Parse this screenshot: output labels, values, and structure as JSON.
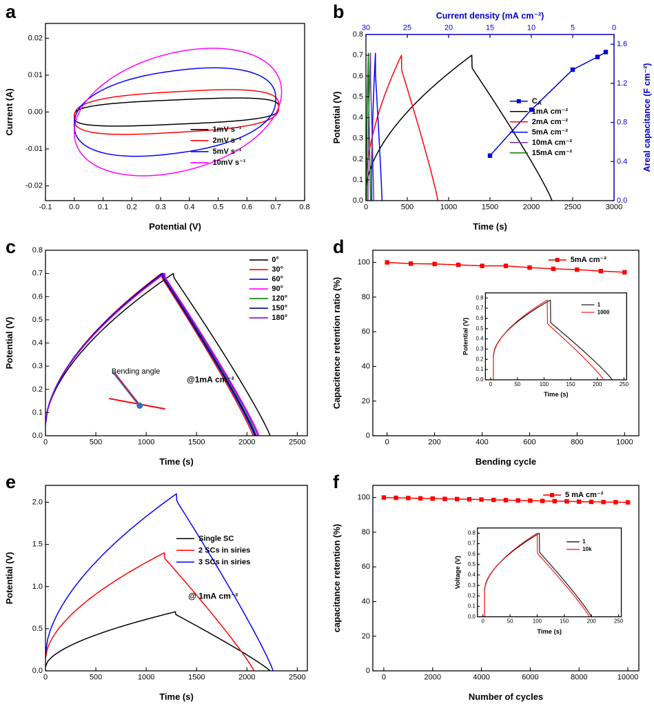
{
  "figure": {
    "background": "#ffffff",
    "accent_blue": "#0000cd"
  },
  "chart_data": [
    {
      "panel_label": "a",
      "type": "line",
      "xlabel": "Potential (V)",
      "ylabel": "Current (A)",
      "xlim": [
        -0.1,
        0.8
      ],
      "xticks": [
        -0.1,
        0.0,
        0.1,
        0.2,
        0.3,
        0.4,
        0.5,
        0.6,
        0.7,
        0.8
      ],
      "xdec": 1,
      "ylim": [
        -0.024,
        0.024
      ],
      "yticks": [
        -0.02,
        -0.01,
        0.0,
        0.01,
        0.02
      ],
      "ydec": 2,
      "margins": {
        "l": 66,
        "r": 32,
        "t": 34,
        "b": 50
      },
      "legend": {
        "x": 0.56,
        "y": 0.56,
        "dy": 16
      },
      "series": [
        {
          "type": "cv",
          "label": "1mV s⁻¹",
          "color": "#000000",
          "cx": 0.355,
          "rx": 0.355,
          "ry": 0.0033,
          "tilt": 0.0012,
          "n": 3.2
        },
        {
          "type": "cv",
          "label": "2mV s⁻¹",
          "color": "#ff0000",
          "cx": 0.355,
          "rx": 0.355,
          "ry": 0.0055,
          "tilt": 0.0016,
          "n": 3.0
        },
        {
          "type": "cv",
          "label": "5mV s⁻¹",
          "color": "#0000ff",
          "cx": 0.35,
          "rx": 0.35,
          "ry": 0.0112,
          "tilt": 0.0035,
          "n": 2.3
        },
        {
          "type": "cv",
          "label": "10mV s⁻¹",
          "color": "#ff00ff",
          "cx": 0.36,
          "rx": 0.36,
          "ry": 0.0163,
          "tilt": 0.0055,
          "n": 2.05
        }
      ]
    },
    {
      "panel_label": "b",
      "type": "line",
      "xlabel": "Time (s)",
      "ylabel": "Potential (V)",
      "xlim": [
        0,
        3000
      ],
      "xticks": [
        0,
        500,
        1000,
        1500,
        2000,
        2500,
        3000
      ],
      "xdec": 0,
      "ylim": [
        0,
        0.8
      ],
      "yticks": [
        0.0,
        0.1,
        0.2,
        0.3,
        0.4,
        0.5,
        0.6,
        0.7,
        0.8
      ],
      "ydec": 1,
      "top_axis": {
        "label": "Current density (mA cm⁻²)",
        "lim": [
          30,
          0
        ],
        "ticks": [
          30,
          25,
          20,
          15,
          10,
          5,
          0
        ],
        "dec": 0,
        "color": "#0000cd"
      },
      "right_axis": {
        "label": "Areal capacitance (F cm⁻²)",
        "lim": [
          0,
          1.7
        ],
        "ticks": [
          0.0,
          0.4,
          0.8,
          1.2,
          1.6
        ],
        "dec": 1,
        "color": "#0000cd"
      },
      "margins": {
        "l": 56,
        "r": 58,
        "t": 50,
        "b": 50
      },
      "legend": {
        "x": 0.58,
        "y": 0.36,
        "dy": 15
      },
      "series": [
        {
          "type": "points",
          "label": "C_A",
          "color": "#0000cd",
          "marker": "square",
          "axes": "alt",
          "points": [
            [
              15,
              0.46
            ],
            [
              10,
              0.93
            ],
            [
              5,
              1.34
            ],
            [
              2,
              1.47
            ],
            [
              1,
              1.52
            ]
          ]
        },
        {
          "type": "gcd",
          "label": "1mA cm⁻²",
          "color": "#000000",
          "t0": 0,
          "v0": 0.05,
          "t_top": 1280,
          "v_max": 0.7,
          "drop": 0.06,
          "t_end": 2250
        },
        {
          "type": "gcd",
          "label": "2mA cm⁻²",
          "color": "#ff0000",
          "t0": 0,
          "v0": 0.08,
          "t_top": 430,
          "v_max": 0.7,
          "drop": 0.07,
          "t_end": 870
        },
        {
          "type": "gcd",
          "label": "5mA cm⁻²",
          "color": "#0000ff",
          "t0": 70,
          "v0": 0.1,
          "t_top": 115,
          "v_max": 0.71,
          "drop": 0.1,
          "t_end": 195,
          "jump": true
        },
        {
          "type": "gcd",
          "label": "10mA cm⁻²",
          "color": "#7030a0",
          "t0": 25,
          "v0": 0.12,
          "t_top": 55,
          "v_max": 0.71,
          "drop": 0.12,
          "t_end": 95,
          "jump": true
        },
        {
          "type": "gcd",
          "label": "15mA cm⁻²",
          "color": "#008000",
          "t0": 8,
          "v0": 0.15,
          "t_top": 30,
          "v_max": 0.71,
          "drop": 0.15,
          "t_end": 55,
          "jump": true
        }
      ]
    },
    {
      "panel_label": "c",
      "type": "line",
      "xlabel": "Time (s)",
      "ylabel": "Potential (V)",
      "xlim": [
        0,
        2600
      ],
      "xticks": [
        0,
        500,
        1000,
        1500,
        2000,
        2500
      ],
      "xdec": 0,
      "ylim": [
        0,
        0.8
      ],
      "yticks": [
        0.0,
        0.1,
        0.2,
        0.3,
        0.4,
        0.5,
        0.6,
        0.7,
        0.8
      ],
      "ydec": 1,
      "margins": {
        "l": 66,
        "r": 28,
        "t": 22,
        "b": 50
      },
      "legend": {
        "x": 0.78,
        "y": 0.015,
        "dy": 14
      },
      "annotations": [
        {
          "text": "@1mA cm⁻²",
          "x": 0.63,
          "y": 0.7,
          "size": 12,
          "bold": true,
          "color": "#000000"
        }
      ],
      "drawing": {
        "label": "Bending angle",
        "label_pos": [
          0.345,
          0.655
        ],
        "segments": [
          {
            "x1": 0.245,
            "y1": 0.8,
            "x2": 0.455,
            "y2": 0.855,
            "color": "#ff0000",
            "w": 2
          },
          {
            "x1": 0.36,
            "y1": 0.838,
            "x2": 0.262,
            "y2": 0.662,
            "color": "#4472c4",
            "w": 3.5
          },
          {
            "x1": 0.36,
            "y1": 0.838,
            "x2": 0.268,
            "y2": 0.668,
            "color": "#ff0000",
            "w": 1.2
          }
        ],
        "dot": {
          "x": 0.36,
          "y": 0.838,
          "r": 4.5,
          "color": "#2e75b6"
        }
      },
      "series": [
        {
          "type": "gcd",
          "label": "0°",
          "color": "#000000",
          "t0": 0,
          "v0": 0.05,
          "t_top": 1270,
          "v_max": 0.7,
          "drop": 0.015,
          "t_end": 2230
        },
        {
          "type": "gcd",
          "label": "30°",
          "color": "#ff0000",
          "t0": 0,
          "v0": 0.05,
          "t_top": 1150,
          "v_max": 0.7,
          "drop": 0.015,
          "t_end": 2060
        },
        {
          "type": "gcd",
          "label": "60°",
          "color": "#0000ff",
          "t0": 0,
          "v0": 0.05,
          "t_top": 1160,
          "v_max": 0.7,
          "drop": 0.015,
          "t_end": 2075
        },
        {
          "type": "gcd",
          "label": "90°",
          "color": "#ff00ff",
          "t0": 0,
          "v0": 0.05,
          "t_top": 1185,
          "v_max": 0.7,
          "drop": 0.015,
          "t_end": 2120
        },
        {
          "type": "gcd",
          "label": "120°",
          "color": "#008000",
          "t0": 0,
          "v0": 0.05,
          "t_top": 1170,
          "v_max": 0.7,
          "drop": 0.015,
          "t_end": 2095
        },
        {
          "type": "gcd",
          "label": "150°",
          "color": "#000080",
          "t0": 0,
          "v0": 0.05,
          "t_top": 1163,
          "v_max": 0.7,
          "drop": 0.015,
          "t_end": 2085
        },
        {
          "type": "gcd",
          "label": "180°",
          "color": "#8b00ff",
          "t0": 0,
          "v0": 0.05,
          "t_top": 1178,
          "v_max": 0.7,
          "drop": 0.015,
          "t_end": 2110
        }
      ]
    },
    {
      "panel_label": "d",
      "type": "scatter",
      "xlabel": "Bending cycle",
      "ylabel": "Capacitence retention ratio (%)",
      "xlim": [
        -60,
        1060
      ],
      "xticks": [
        0,
        200,
        400,
        600,
        800,
        1000
      ],
      "xdec": 0,
      "ylim": [
        0,
        107
      ],
      "yticks": [
        0,
        20,
        40,
        60,
        80,
        100
      ],
      "ydec": 0,
      "margins": {
        "l": 66,
        "r": 22,
        "t": 22,
        "b": 50
      },
      "legend": {
        "x": 0.66,
        "y": 0.015,
        "dy": 15
      },
      "series": [
        {
          "type": "points",
          "label": "5mA cm⁻²",
          "color": "#ff0000",
          "marker": "square",
          "points": [
            [
              0,
              100
            ],
            [
              100,
              99.3
            ],
            [
              200,
              99.1
            ],
            [
              300,
              98.6
            ],
            [
              400,
              98.0
            ],
            [
              500,
              98.0
            ],
            [
              600,
              97.0
            ],
            [
              700,
              96.3
            ],
            [
              800,
              95.8
            ],
            [
              900,
              95.0
            ],
            [
              1000,
              94.3
            ]
          ]
        }
      ],
      "inset": {
        "rect": [
          0.33,
          0.2,
          0.65,
          0.61
        ],
        "xlabel": "Time (s)",
        "ylabel": "Potential (V)",
        "xlim": [
          -10,
          255
        ],
        "xticks": [
          0,
          50,
          100,
          150,
          200,
          250
        ],
        "xdec": 0,
        "ylim": [
          0,
          0.85
        ],
        "yticks": [
          0.0,
          0.1,
          0.2,
          0.3,
          0.4,
          0.5,
          0.6,
          0.7,
          0.8
        ],
        "ydec": 1,
        "legend": {
          "x": 0.68,
          "y": 0.08,
          "dy": 11
        },
        "series": [
          {
            "type": "gcd",
            "label": "1",
            "color": "#000000",
            "t0": 5,
            "v0": 0.24,
            "t_top": 112,
            "v_max": 0.78,
            "drop": 0.22,
            "t_end": 228,
            "jump": true
          },
          {
            "type": "gcd",
            "label": "1000",
            "color": "#ff0000",
            "t0": 5,
            "v0": 0.23,
            "t_top": 106,
            "v_max": 0.78,
            "drop": 0.23,
            "t_end": 212,
            "jump": true
          }
        ]
      }
    },
    {
      "panel_label": "e",
      "type": "line",
      "xlabel": "Time (s)",
      "ylabel": "Potential (V)",
      "xlim": [
        0,
        2600
      ],
      "xticks": [
        0,
        500,
        1000,
        1500,
        2000,
        2500
      ],
      "xdec": 0,
      "ylim": [
        0,
        2.2
      ],
      "yticks": [
        0.0,
        0.5,
        1.0,
        1.5,
        2.0
      ],
      "ydec": 1,
      "margins": {
        "l": 66,
        "r": 28,
        "t": 22,
        "b": 50
      },
      "legend": {
        "x": 0.5,
        "y": 0.25,
        "dy": 17
      },
      "annotations": [
        {
          "text": "@ 1mA cm⁻²",
          "x": 0.64,
          "y": 0.6,
          "size": 12,
          "bold": true,
          "color": "#000000"
        }
      ],
      "series": [
        {
          "type": "gcd",
          "label": "Single SC",
          "color": "#000000",
          "t0": 0,
          "v0": 0.05,
          "t_top": 1290,
          "v_max": 0.7,
          "drop": 0.03,
          "t_end": 2230
        },
        {
          "type": "gcd",
          "label": "2 SCs in siries",
          "color": "#ff0000",
          "t0": 0,
          "v0": 0.15,
          "t_top": 1180,
          "v_max": 1.4,
          "drop": 0.06,
          "t_end": 2070
        },
        {
          "type": "gcd",
          "label": "3 SCs in siries",
          "color": "#0000ff",
          "t0": 0,
          "v0": 0.2,
          "t_top": 1300,
          "v_max": 2.1,
          "drop": 0.08,
          "t_end": 2260
        }
      ]
    },
    {
      "panel_label": "f",
      "type": "scatter",
      "xlabel": "Number of cycles",
      "ylabel": "capacitance retention (%)",
      "xlim": [
        -450,
        10450
      ],
      "xticks": [
        0,
        2000,
        4000,
        6000,
        8000,
        10000
      ],
      "xdec": 0,
      "ylim": [
        0,
        107
      ],
      "yticks": [
        0,
        20,
        40,
        60,
        80,
        100
      ],
      "ydec": 0,
      "margins": {
        "l": 66,
        "r": 22,
        "t": 22,
        "b": 50
      },
      "legend": {
        "x": 0.64,
        "y": 0.015,
        "dy": 15
      },
      "series": [
        {
          "type": "points",
          "label": "5 mA cm⁻²",
          "color": "#ff0000",
          "marker": "square",
          "points": [
            [
              0,
              100
            ],
            [
              500,
              99.8
            ],
            [
              1000,
              99.7
            ],
            [
              1500,
              99.5
            ],
            [
              2000,
              99.4
            ],
            [
              2500,
              99.2
            ],
            [
              3000,
              99.1
            ],
            [
              3500,
              99.0
            ],
            [
              4000,
              98.8
            ],
            [
              4500,
              98.6
            ],
            [
              5000,
              98.5
            ],
            [
              5500,
              98.3
            ],
            [
              6000,
              98.2
            ],
            [
              6500,
              98.0
            ],
            [
              7000,
              97.9
            ],
            [
              7500,
              97.8
            ],
            [
              8000,
              97.6
            ],
            [
              8500,
              97.5
            ],
            [
              9000,
              97.4
            ],
            [
              9500,
              97.3
            ],
            [
              10000,
              97.2
            ]
          ]
        }
      ],
      "inset": {
        "rect": [
          0.3,
          0.2,
          0.66,
          0.62
        ],
        "xlabel": "Time (s)",
        "ylabel": "Voltage (V)",
        "xlim": [
          -10,
          255
        ],
        "xticks": [
          0,
          50,
          100,
          150,
          200,
          250
        ],
        "xdec": 0,
        "ylim": [
          0,
          0.85
        ],
        "yticks": [
          0.0,
          0.1,
          0.2,
          0.3,
          0.4,
          0.5,
          0.6,
          0.7,
          0.8
        ],
        "ydec": 1,
        "legend": {
          "x": 0.62,
          "y": 0.1,
          "dy": 11
        },
        "series": [
          {
            "type": "gcd",
            "label": "1",
            "color": "#000000",
            "t0": 3,
            "v0": 0.26,
            "t_top": 104,
            "v_max": 0.8,
            "drop": 0.18,
            "t_end": 200,
            "jump": true
          },
          {
            "type": "gcd",
            "label": "10k",
            "color": "#ff0000",
            "t0": 3,
            "v0": 0.25,
            "t_top": 100,
            "v_max": 0.8,
            "drop": 0.19,
            "t_end": 196,
            "jump": true
          }
        ]
      }
    }
  ]
}
